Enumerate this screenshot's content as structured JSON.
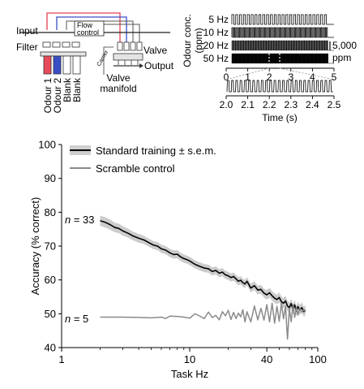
{
  "panel_a": {
    "input_label": "Input",
    "filter_label": "Filter",
    "flow_label_line1": "Flow",
    "flow_label_line2": "control",
    "carrier_label": "Carrier",
    "valve_label": "Valve",
    "output_label": "Output",
    "manifold_line1": "Valve",
    "manifold_line2": "manifold",
    "vial_labels": [
      "Odour 1",
      "Odour 2",
      "Blank",
      "Blank"
    ],
    "colors": {
      "odour1": "#e84a5a",
      "odour2": "#3a4ec8",
      "red_line": "#e04050",
      "blue_line": "#3a4ec8"
    }
  },
  "panel_b": {
    "ylabel_line1": "Odour conc.",
    "ylabel_line2": "(ppm)",
    "trace_labels": [
      "5 Hz",
      "10 Hz",
      "20 Hz",
      "50 Hz"
    ],
    "scale_value": "5,000",
    "scale_unit": "ppm",
    "top_axis_ticks": [
      "0",
      "1",
      "2",
      "3",
      "4",
      "5"
    ],
    "bottom_axis_ticks": [
      "2.0",
      "2.1",
      "2.2",
      "2.3",
      "2.4",
      "2.5"
    ],
    "xlabel": "Time (s)",
    "frequencies_hz": [
      5,
      10,
      20,
      50
    ],
    "duration_s": 5,
    "zoom_window_s": [
      2.0,
      2.5
    ]
  },
  "chart_data": {
    "type": "line",
    "xlabel": "Task Hz",
    "ylabel": "Accuracy (% correct)",
    "xscale": "log",
    "xlim": [
      1,
      100
    ],
    "ylim": [
      40,
      100
    ],
    "x_ticks": [
      1,
      10,
      40,
      100
    ],
    "x_tick_labels": [
      "1",
      "10",
      "40",
      "100"
    ],
    "y_ticks": [
      40,
      50,
      60,
      70,
      80,
      90,
      100
    ],
    "y_tick_labels": [
      "40",
      "50",
      "60",
      "70",
      "80",
      "90",
      "100"
    ],
    "legend_position": "top-left",
    "annotations": [
      {
        "text_prefix": "n",
        "text_value": " = 33"
      },
      {
        "text_prefix": "n",
        "text_value": " = 5"
      }
    ],
    "series": [
      {
        "name": "Standard training ± s.e.m.",
        "color": "#000000",
        "band_color": "#cccccc",
        "x": [
          2,
          2.2,
          2.4,
          2.6,
          2.8,
          3,
          3.3,
          3.6,
          4,
          4.4,
          4.8,
          5.2,
          5.6,
          6,
          6.5,
          7,
          7.5,
          8,
          8.5,
          9,
          9.5,
          10,
          11,
          12,
          13,
          14,
          15,
          16,
          17,
          18,
          19,
          20,
          21,
          22,
          23,
          24,
          25,
          26,
          27,
          28,
          30,
          32,
          34,
          36,
          38,
          40,
          42,
          44,
          46,
          48,
          50,
          52,
          54,
          56,
          58,
          60,
          62,
          64,
          66,
          68,
          70,
          72,
          75,
          78,
          80
        ],
        "y": [
          77.5,
          77,
          76.3,
          75.5,
          75.2,
          74.5,
          73.8,
          73,
          72.3,
          71.8,
          71,
          70.3,
          70,
          69.2,
          68.8,
          68,
          67.5,
          67.6,
          66.8,
          66.3,
          66,
          65.6,
          64.6,
          64,
          63.5,
          63.3,
          62.5,
          62.8,
          62,
          62.3,
          61.5,
          61.2,
          60.7,
          61,
          60.3,
          59.6,
          59.9,
          59.2,
          58.8,
          59.6,
          57.6,
          58.3,
          57,
          57.2,
          56.1,
          55.6,
          56.2,
          55.3,
          54.6,
          54.2,
          54.8,
          53.6,
          53.1,
          53.8,
          52.3,
          51.8,
          53,
          51.3,
          52.6,
          50.8,
          52.1,
          51.1,
          51.8,
          50.6,
          51.1
        ],
        "sem": [
          1.5,
          1.5,
          1.5,
          1.4,
          1.4,
          1.4,
          1.3,
          1.3,
          1.3,
          1.2,
          1.2,
          1.2,
          1.2,
          1.2,
          1.2,
          1.2,
          1.2,
          1.2,
          1.2,
          1.2,
          1.2,
          1.2,
          1.2,
          1.2,
          1.2,
          1.2,
          1.2,
          1.2,
          1.2,
          1.2,
          1.2,
          1.2,
          1.2,
          1.2,
          1.2,
          1.2,
          1.2,
          1.2,
          1.2,
          1.2,
          1.3,
          1.3,
          1.3,
          1.3,
          1.3,
          1.4,
          1.4,
          1.4,
          1.4,
          1.4,
          1.5,
          1.5,
          1.5,
          1.5,
          1.5,
          1.5,
          1.5,
          1.5,
          1.5,
          1.5,
          1.5,
          1.5,
          1.5,
          1.5,
          1.5
        ]
      },
      {
        "name": "Scramble control",
        "color": "#8a8a8a",
        "x": [
          2,
          3,
          4,
          5,
          6,
          6.5,
          7,
          8,
          9,
          10,
          11,
          12,
          13,
          14,
          15,
          16,
          17,
          18,
          19,
          20,
          21,
          22,
          23,
          24,
          25,
          26,
          27,
          28,
          30,
          32,
          34,
          36,
          38,
          40,
          42,
          44,
          46,
          48,
          50,
          52,
          54,
          56,
          58,
          60,
          62,
          64,
          66,
          68,
          70,
          72,
          75,
          78,
          80
        ],
        "y": [
          49,
          49,
          48.9,
          48.8,
          49,
          48.6,
          49.3,
          49.2,
          49,
          48.7,
          50,
          49.3,
          48.6,
          50.5,
          48.9,
          49.5,
          48.2,
          50.6,
          49.4,
          51,
          48.3,
          50.4,
          48.6,
          50.2,
          49.1,
          51.2,
          47.6,
          50.6,
          47.6,
          52.3,
          48.2,
          51.6,
          48.1,
          52.7,
          47.6,
          53.1,
          47.2,
          52.2,
          47.8,
          53.1,
          48.5,
          52.2,
          42.5,
          51.5,
          47.6,
          52.7,
          48.9,
          51.9,
          49.6,
          51.6,
          50.5,
          51.2,
          50.6
        ]
      }
    ]
  }
}
